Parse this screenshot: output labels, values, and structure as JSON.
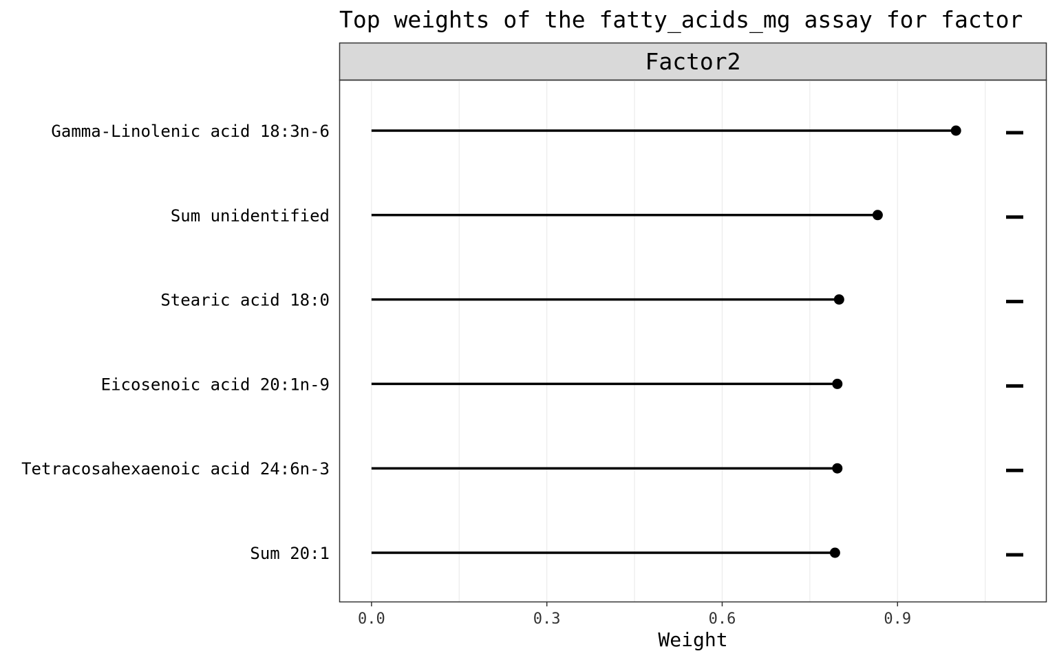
{
  "chart_data": {
    "type": "lollipop",
    "title": "Top weights of the fatty_acids_mg assay for factor",
    "facet": "Factor2",
    "xlabel": "Weight",
    "ylabel": "",
    "xlim": [
      -0.054,
      1.154
    ],
    "xticks": [
      0.0,
      0.3,
      0.6,
      0.9
    ],
    "xtick_labels": [
      "0.0",
      "0.3",
      "0.6",
      "0.9"
    ],
    "categories": [
      "Gamma-Linolenic acid 18:3n-6",
      "Sum unidentified",
      "Stearic acid 18:0",
      "Eicosenoic acid 20:1n-9",
      "Tetracosahexaenoic acid 24:6n-3",
      "Sum 20:1"
    ],
    "values": [
      1.0,
      0.866,
      0.8,
      0.797,
      0.797,
      0.793
    ],
    "signs": [
      "-",
      "-",
      "-",
      "-",
      "-",
      "-"
    ],
    "grid": true,
    "legend": "none"
  }
}
